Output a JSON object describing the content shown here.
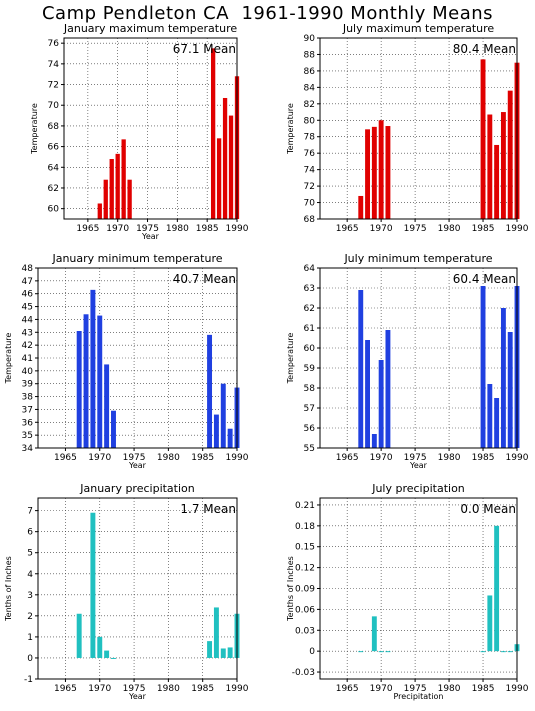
{
  "page": {
    "title": "Camp Pendleton CA  1961-1990 Monthly Means"
  },
  "chart_data": [
    {
      "type": "bar",
      "title": "January maximum temperature",
      "ylabel": "Temperature",
      "xlabel": "Year",
      "mean_label": "67.1 Mean",
      "color": "#e00000",
      "xlim": [
        1961,
        1990
      ],
      "ylim": [
        59,
        76.5
      ],
      "yticks": [
        60,
        62,
        64,
        66,
        68,
        70,
        72,
        74,
        76
      ],
      "ytick_labels": [
        "60",
        "62",
        "64",
        "66",
        "68",
        "70",
        "72",
        "74",
        "76"
      ],
      "xticks": [
        1965,
        1970,
        1975,
        1980,
        1985,
        1990
      ],
      "x": [
        1967,
        1968,
        1969,
        1970,
        1971,
        1972,
        1986,
        1987,
        1988,
        1989,
        1990
      ],
      "values": [
        60.5,
        62.8,
        64.8,
        65.3,
        66.7,
        62.8,
        75.5,
        66.8,
        70.7,
        69.0,
        72.8
      ]
    },
    {
      "type": "bar",
      "title": "July maximum temperature",
      "ylabel": "Temperature",
      "xlabel": "",
      "mean_label": "80.4 Mean",
      "color": "#e00000",
      "xlim": [
        1961,
        1990
      ],
      "ylim": [
        68,
        90
      ],
      "yticks": [
        68,
        70,
        72,
        74,
        76,
        78,
        80,
        82,
        84,
        86,
        88,
        90
      ],
      "ytick_labels": [
        "68",
        "70",
        "72",
        "74",
        "76",
        "78",
        "80",
        "82",
        "84",
        "86",
        "88",
        "90"
      ],
      "xticks": [
        1965,
        1970,
        1975,
        1980,
        1985,
        1990
      ],
      "x": [
        1967,
        1968,
        1969,
        1970,
        1971,
        1985,
        1986,
        1987,
        1988,
        1989,
        1990
      ],
      "values": [
        70.8,
        78.9,
        79.2,
        80.0,
        79.3,
        87.4,
        80.7,
        77.0,
        81.0,
        83.6,
        87.0
      ]
    },
    {
      "type": "bar",
      "title": "January minimum temperature",
      "ylabel": "Temperature",
      "xlabel": "Year",
      "mean_label": "40.7 Mean",
      "color": "#2040e0",
      "xlim": [
        1961,
        1990
      ],
      "ylim": [
        34,
        48
      ],
      "yticks": [
        34,
        35,
        36,
        37,
        38,
        39,
        40,
        41,
        42,
        43,
        44,
        45,
        46,
        47,
        48
      ],
      "ytick_labels": [
        "34",
        "35",
        "36",
        "37",
        "38",
        "39",
        "40",
        "41",
        "42",
        "43",
        "44",
        "45",
        "46",
        "47",
        "48"
      ],
      "xticks": [
        1965,
        1970,
        1975,
        1980,
        1985,
        1990
      ],
      "x": [
        1967,
        1968,
        1969,
        1970,
        1971,
        1972,
        1986,
        1987,
        1988,
        1989,
        1990
      ],
      "values": [
        43.1,
        44.4,
        46.3,
        44.3,
        40.5,
        36.9,
        42.8,
        36.6,
        39.0,
        35.5,
        38.7
      ]
    },
    {
      "type": "bar",
      "title": "July minimum temperature",
      "ylabel": "Temperature",
      "xlabel": "Year",
      "mean_label": "60.4 Mean",
      "color": "#2040e0",
      "xlim": [
        1961,
        1990
      ],
      "ylim": [
        55,
        64
      ],
      "yticks": [
        55,
        56,
        57,
        58,
        59,
        60,
        61,
        62,
        63,
        64
      ],
      "ytick_labels": [
        "55",
        "56",
        "57",
        "58",
        "59",
        "60",
        "61",
        "62",
        "63",
        "64"
      ],
      "xticks": [
        1965,
        1970,
        1975,
        1980,
        1985,
        1990
      ],
      "x": [
        1967,
        1968,
        1969,
        1970,
        1971,
        1985,
        1986,
        1987,
        1988,
        1989,
        1990
      ],
      "values": [
        62.9,
        60.4,
        55.7,
        59.4,
        60.9,
        63.1,
        58.2,
        57.5,
        62.0,
        60.8,
        63.1
      ]
    },
    {
      "type": "bar",
      "title": "January precipitation",
      "ylabel": "Tenths of Inches",
      "xlabel": "Year",
      "mean_label": "1.7 Mean",
      "color": "#20c0c0",
      "xlim": [
        1961,
        1990
      ],
      "ylim": [
        -1,
        7.6
      ],
      "yticks": [
        -1,
        0,
        1,
        2,
        3,
        4,
        5,
        6,
        7
      ],
      "ytick_labels": [
        "-1",
        "0",
        "1",
        "2",
        "3",
        "4",
        "5",
        "6",
        "7"
      ],
      "xticks": [
        1965,
        1970,
        1975,
        1980,
        1985,
        1990
      ],
      "x": [
        1967,
        1969,
        1970,
        1971,
        1972,
        1986,
        1987,
        1988,
        1989,
        1990
      ],
      "values": [
        2.1,
        6.9,
        1.0,
        0.35,
        0.0,
        0.8,
        2.4,
        0.45,
        0.5,
        2.1
      ]
    },
    {
      "type": "bar",
      "title": "July precipitation",
      "ylabel": "Tenths of Inches",
      "xlabel": "Precipitation",
      "mean_label": "0.0 Mean",
      "color": "#20c0c0",
      "xlim": [
        1961,
        1990
      ],
      "ylim": [
        -0.04,
        0.22
      ],
      "yticks": [
        -0.03,
        0,
        0.03,
        0.06,
        0.09,
        0.12,
        0.15,
        0.18,
        0.21
      ],
      "ytick_labels": [
        "-0.03",
        "0",
        "0.03",
        "0.06",
        "0.09",
        "0.12",
        "0.15",
        "0.18",
        "0.21"
      ],
      "xticks": [
        1965,
        1970,
        1975,
        1980,
        1985,
        1990
      ],
      "x": [
        1967,
        1969,
        1970,
        1971,
        1985,
        1986,
        1987,
        1988,
        1989,
        1990
      ],
      "values": [
        0.0,
        0.05,
        0.0,
        0.0,
        0.0,
        0.08,
        0.18,
        0.0,
        0.0,
        0.01
      ]
    }
  ]
}
